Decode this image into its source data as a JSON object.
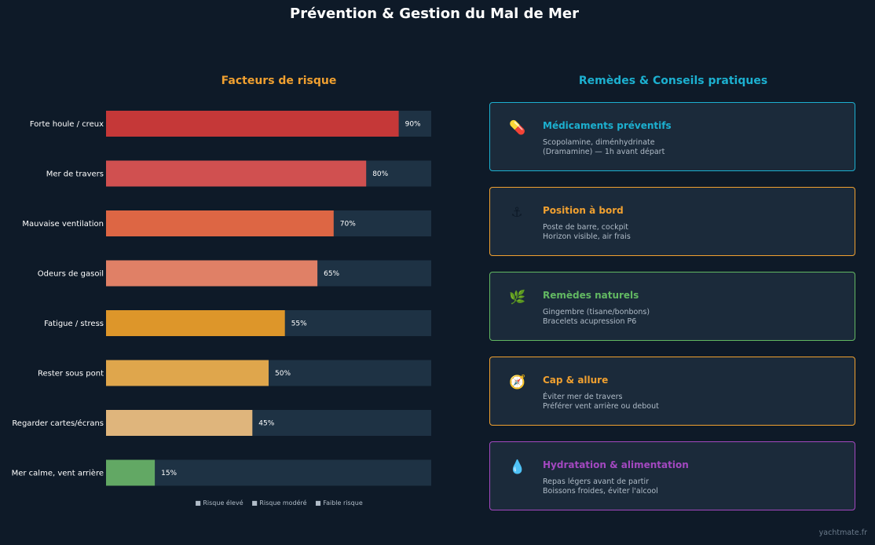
{
  "page_title": "Prévention & Gestion du Mal de Mer",
  "chart_data": {
    "type": "bar",
    "orientation": "horizontal",
    "title": "Facteurs de risque",
    "categories": [
      "Forte houle / creux",
      "Mer de travers",
      "Mauvaise ventilation",
      "Odeurs de gasoil",
      "Fatigue / stress",
      "Rester sous pont",
      "Regarder cartes/écrans",
      "Mer calme, vent arrière"
    ],
    "values": [
      90,
      80,
      70,
      65,
      55,
      50,
      45,
      15
    ],
    "value_labels": [
      "90%",
      "80%",
      "70%",
      "65%",
      "55%",
      "50%",
      "45%",
      "15%"
    ],
    "colors": [
      "#c53838",
      "#d05050",
      "#dd6644",
      "#e08066",
      "#dd962a",
      "#dfa64c",
      "#dfb57c",
      "#62a864"
    ],
    "background_color": "#1e3244",
    "xlim": [
      0,
      100
    ],
    "grid": false,
    "xlabel": "",
    "ylabel": "",
    "legend": [
      "■ Risque élevé",
      "■ Risque modéré",
      "■ Faible risque"
    ],
    "legend_placement": "bottom"
  },
  "remedies": {
    "title": "Remèdes & Conseils pratiques",
    "cards": [
      {
        "icon": "pill-icon",
        "glyph": "💊",
        "title": "Médicaments préventifs",
        "lines": [
          "Scopolamine, diménhydrinate",
          "(Dramamine) — 1h avant départ"
        ],
        "color": "#1cb0d0"
      },
      {
        "icon": "anchor-icon",
        "glyph": "⚓",
        "title": "Position à bord",
        "lines": [
          "Poste de barre, cockpit",
          "Horizon visible, air frais"
        ],
        "color": "#f0a030"
      },
      {
        "icon": "ginger-icon",
        "glyph": "🌿",
        "title": "Remèdes naturels",
        "lines": [
          "Gingembre (tisane/bonbons)",
          "Bracelets acupression P6"
        ],
        "color": "#62b862"
      },
      {
        "icon": "compass-icon",
        "glyph": "🧭",
        "title": "Cap & allure",
        "lines": [
          "Éviter mer de travers",
          "Préférer vent arrière ou debout"
        ],
        "color": "#f0a030"
      },
      {
        "icon": "water-drop-icon",
        "glyph": "💧",
        "title": "Hydratation & alimentation",
        "lines": [
          "Repas légers avant de partir",
          "Boissons froides, éviter l'alcool"
        ],
        "color": "#a348c0"
      }
    ]
  },
  "watermark": "yachtmate.fr"
}
